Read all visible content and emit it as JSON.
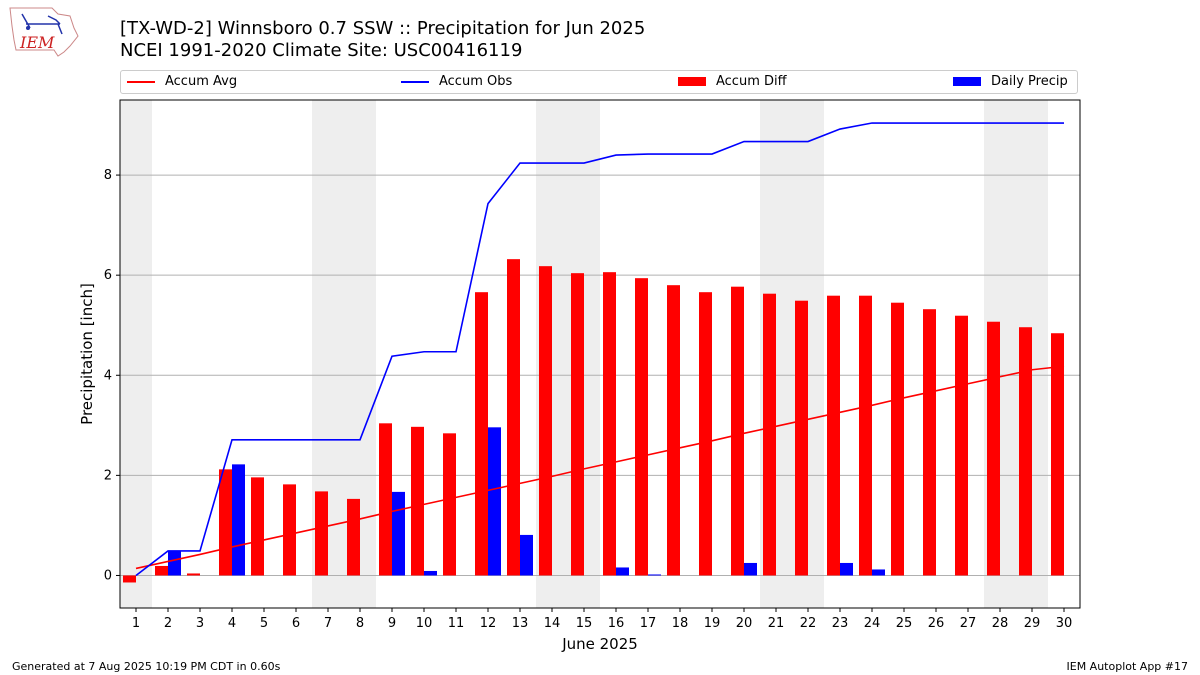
{
  "header": {
    "logo_text": "IEM",
    "title_line1": "[TX-WD-2] Winnsboro 0.7 SSW :: Precipitation for Jun 2025",
    "title_line2": "NCEI 1991-2020 Climate Site: USC00416119"
  },
  "legend": {
    "placement": "top",
    "items": [
      {
        "label": "Accum Avg",
        "kind": "line",
        "color": "#ff0000"
      },
      {
        "label": "Accum Obs",
        "kind": "line",
        "color": "#0000ff"
      },
      {
        "label": "Accum Diff",
        "kind": "box",
        "color": "#ff0000"
      },
      {
        "label": "Daily Precip",
        "kind": "box",
        "color": "#0000ff"
      }
    ]
  },
  "footer": {
    "generated": "Generated at 7 Aug 2025 10:19 PM CDT in 0.60s",
    "app": "IEM Autoplot App #17"
  },
  "chart_data": {
    "type": "bar",
    "xlabel": "June 2025",
    "ylabel": "Precipitation [inch]",
    "ylim": [
      -0.65,
      9.5
    ],
    "yticks": [
      0,
      2,
      4,
      6,
      8
    ],
    "grid": "horizontal",
    "categories": [
      "1",
      "2",
      "3",
      "4",
      "5",
      "6",
      "7",
      "8",
      "9",
      "10",
      "11",
      "12",
      "13",
      "14",
      "15",
      "16",
      "17",
      "18",
      "19",
      "20",
      "21",
      "22",
      "23",
      "24",
      "25",
      "26",
      "27",
      "28",
      "29",
      "30"
    ],
    "weekend_shading": [
      [
        1,
        1
      ],
      [
        7,
        8
      ],
      [
        14,
        15
      ],
      [
        21,
        22
      ],
      [
        28,
        29
      ]
    ],
    "shading_color": "#eeeeee",
    "series": [
      {
        "name": "Accum Diff",
        "kind": "bar",
        "color": "#ff0000",
        "values": [
          -0.14,
          0.19,
          0.04,
          2.12,
          1.96,
          1.82,
          1.68,
          1.53,
          3.04,
          2.97,
          2.84,
          5.66,
          6.32,
          6.18,
          6.04,
          6.06,
          5.94,
          5.8,
          5.66,
          5.77,
          5.63,
          5.49,
          5.59,
          5.59,
          5.45,
          5.32,
          5.19,
          5.07,
          4.96,
          4.84
        ]
      },
      {
        "name": "Daily Precip",
        "kind": "bar",
        "color": "#0000ff",
        "values": [
          0,
          0.49,
          0,
          2.22,
          0,
          0,
          0,
          0,
          1.67,
          0.09,
          0,
          2.96,
          0.81,
          0,
          0,
          0.16,
          0.02,
          0,
          0,
          0.25,
          0,
          0,
          0.25,
          0.12,
          0,
          0,
          0,
          0,
          0,
          0
        ]
      },
      {
        "name": "Accum Avg",
        "kind": "line",
        "color": "#ff0000",
        "values": [
          0.14,
          0.28,
          0.42,
          0.57,
          0.71,
          0.85,
          0.99,
          1.13,
          1.28,
          1.42,
          1.56,
          1.7,
          1.84,
          1.98,
          2.13,
          2.27,
          2.41,
          2.55,
          2.69,
          2.84,
          2.98,
          3.12,
          3.26,
          3.4,
          3.55,
          3.69,
          3.83,
          3.97,
          4.11,
          4.18
        ]
      },
      {
        "name": "Accum Obs",
        "kind": "line",
        "color": "#0000ff",
        "values": [
          0,
          0.49,
          0.49,
          2.71,
          2.71,
          2.71,
          2.71,
          2.71,
          4.38,
          4.47,
          4.47,
          7.43,
          8.24,
          8.24,
          8.24,
          8.4,
          8.42,
          8.42,
          8.42,
          8.67,
          8.67,
          8.67,
          8.92,
          9.04,
          9.04,
          9.04,
          9.04,
          9.04,
          9.04,
          9.04
        ]
      }
    ]
  }
}
